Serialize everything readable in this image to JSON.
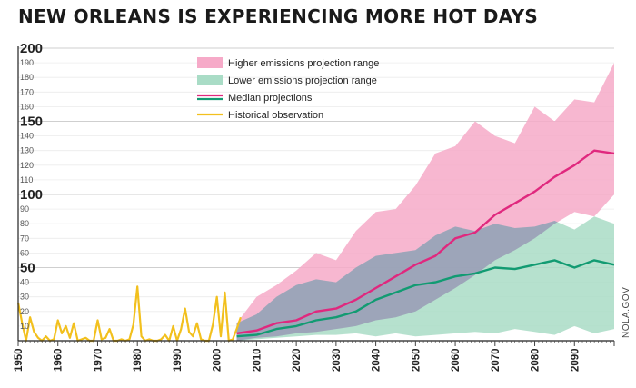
{
  "chart_data": {
    "type": "area",
    "title": "NEW ORLEANS IS EXPERIENCING MORE HOT DAYS",
    "source": "NOLA.GOV",
    "xlim": [
      1950,
      2100
    ],
    "ylim": [
      0,
      200
    ],
    "y_ticks_major": [
      50,
      100,
      150,
      200
    ],
    "y_ticks_minor": [
      10,
      20,
      30,
      40,
      60,
      70,
      80,
      90,
      110,
      120,
      130,
      140,
      160,
      170,
      180,
      190
    ],
    "x_ticks": [
      1950,
      1960,
      1970,
      1980,
      1990,
      2000,
      2010,
      2020,
      2030,
      2040,
      2050,
      2060,
      2070,
      2080,
      2090
    ],
    "grid": true,
    "legend": [
      {
        "label": "Higher emissions projection range",
        "kind": "band",
        "color": "#f6aac8"
      },
      {
        "label": "Lower emissions projection range",
        "kind": "band",
        "color": "#a9dcc6"
      },
      {
        "label": "Median projections",
        "kind": "lines",
        "colors": [
          "#e0287e",
          "#129b72"
        ]
      },
      {
        "label": "Historical observation",
        "kind": "line",
        "color": "#f2c01e"
      }
    ],
    "series": [
      {
        "name": "Historical observation",
        "color": "#f2c01e",
        "x": [
          1950,
          1951,
          1952,
          1953,
          1954,
          1955,
          1956,
          1957,
          1958,
          1959,
          1960,
          1961,
          1962,
          1963,
          1964,
          1965,
          1966,
          1967,
          1968,
          1969,
          1970,
          1971,
          1972,
          1973,
          1974,
          1975,
          1976,
          1977,
          1978,
          1979,
          1980,
          1981,
          1982,
          1983,
          1984,
          1985,
          1986,
          1987,
          1988,
          1989,
          1990,
          1991,
          1992,
          1993,
          1994,
          1995,
          1996,
          1997,
          1998,
          1999,
          2000,
          2001,
          2002,
          2003,
          2004,
          2005,
          2006
        ],
        "y": [
          26,
          12,
          0,
          16,
          6,
          2,
          0,
          3,
          0,
          1,
          14,
          5,
          10,
          2,
          12,
          0,
          1,
          2,
          0,
          0,
          14,
          1,
          2,
          8,
          0,
          0,
          1,
          0,
          1,
          11,
          37,
          3,
          0,
          1,
          0,
          0,
          1,
          4,
          0,
          10,
          0,
          8,
          22,
          6,
          3,
          12,
          1,
          0,
          0,
          11,
          30,
          3,
          33,
          0,
          1,
          8,
          16
        ]
      },
      {
        "name": "Higher emissions projection range",
        "color": "#f6aac8",
        "x": [
          2005,
          2010,
          2015,
          2020,
          2025,
          2030,
          2035,
          2040,
          2045,
          2050,
          2055,
          2060,
          2065,
          2070,
          2075,
          2080,
          2085,
          2090,
          2095,
          2100
        ],
        "low": [
          0,
          2,
          3,
          5,
          6,
          8,
          10,
          14,
          16,
          20,
          28,
          36,
          45,
          55,
          62,
          70,
          80,
          88,
          85,
          100
        ],
        "high": [
          12,
          30,
          38,
          48,
          60,
          55,
          75,
          88,
          90,
          106,
          128,
          133,
          150,
          140,
          135,
          160,
          150,
          165,
          163,
          190
        ]
      },
      {
        "name": "Lower emissions projection range",
        "color": "#a9dcc6",
        "x": [
          2005,
          2010,
          2015,
          2020,
          2025,
          2030,
          2035,
          2040,
          2045,
          2050,
          2055,
          2060,
          2065,
          2070,
          2075,
          2080,
          2085,
          2090,
          2095,
          2100
        ],
        "low": [
          0,
          1,
          2,
          3,
          4,
          4,
          5,
          3,
          5,
          3,
          4,
          5,
          6,
          5,
          8,
          6,
          4,
          10,
          5,
          8
        ],
        "high": [
          12,
          18,
          30,
          38,
          42,
          40,
          50,
          58,
          60,
          62,
          72,
          78,
          75,
          80,
          77,
          78,
          82,
          76,
          85,
          80
        ]
      },
      {
        "name": "Median projections (higher emissions)",
        "color": "#e0287e",
        "x": [
          2005,
          2010,
          2015,
          2020,
          2025,
          2030,
          2035,
          2040,
          2045,
          2050,
          2055,
          2060,
          2065,
          2070,
          2075,
          2080,
          2085,
          2090,
          2095,
          2100
        ],
        "y": [
          5,
          7,
          12,
          14,
          20,
          22,
          28,
          36,
          44,
          52,
          58,
          70,
          74,
          86,
          94,
          102,
          112,
          120,
          130,
          128
        ]
      },
      {
        "name": "Median projections (lower emissions)",
        "color": "#129b72",
        "x": [
          2005,
          2010,
          2015,
          2020,
          2025,
          2030,
          2035,
          2040,
          2045,
          2050,
          2055,
          2060,
          2065,
          2070,
          2075,
          2080,
          2085,
          2090,
          2095,
          2100
        ],
        "y": [
          3,
          4,
          8,
          10,
          14,
          16,
          20,
          28,
          33,
          38,
          40,
          44,
          46,
          50,
          49,
          52,
          55,
          50,
          55,
          52
        ]
      }
    ]
  }
}
